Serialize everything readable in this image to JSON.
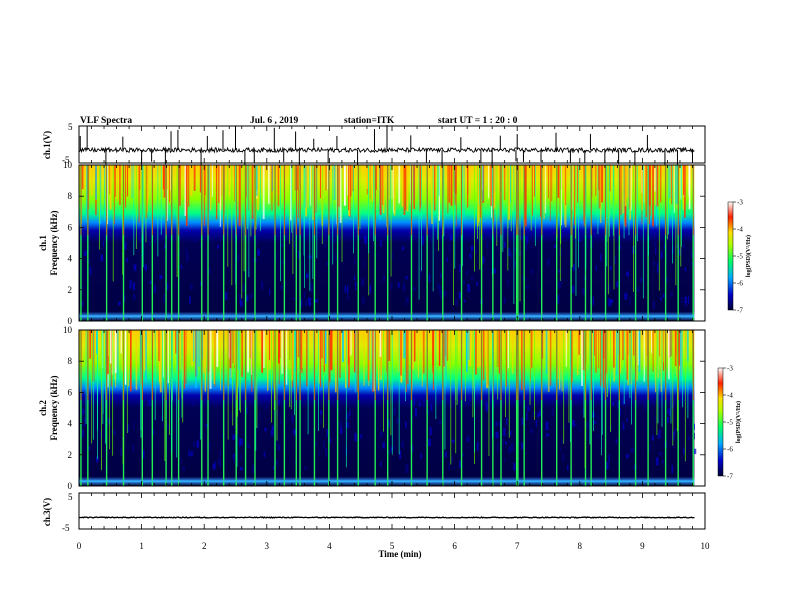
{
  "header": {
    "title": "VLF Spectra",
    "date": "Jul. 6 , 2019",
    "station": "station=ITK",
    "start_ut": "start UT = 1 : 20 : 0"
  },
  "xaxis": {
    "label": "Time (min)",
    "range": [
      0,
      10
    ],
    "ticks": [
      "0",
      "1",
      "2",
      "3",
      "4",
      "5",
      "6",
      "7",
      "8",
      "9",
      "10"
    ]
  },
  "panels": {
    "ch1": {
      "label": "ch.1(V)",
      "range": [
        -5,
        5
      ],
      "ticks": [
        "5",
        "-5"
      ]
    },
    "ch3": {
      "label": "ch.3(V)",
      "range": [
        -5,
        5
      ],
      "ticks": [
        "5",
        "-5"
      ]
    },
    "spec1": {
      "label1": "ch.1",
      "label2": "Frequency (kHz)",
      "range": [
        0,
        10
      ],
      "ticks": [
        "10",
        "8",
        "6",
        "4",
        "2",
        "0"
      ]
    },
    "spec2": {
      "label1": "ch.2",
      "label2": "Frequency (kHz)",
      "range": [
        0,
        10
      ],
      "ticks": [
        "10",
        "8",
        "6",
        "4",
        "2",
        "0"
      ]
    }
  },
  "colorbar": {
    "label": "log(PSD)(V²/Hz)",
    "range": [
      -7,
      -3
    ],
    "ticks": [
      "-3",
      "-4",
      "-5",
      "-6",
      "-7"
    ],
    "colors": [
      "#000033",
      "#0000c8",
      "#00aaff",
      "#00ff66",
      "#aaff00",
      "#ffdd00",
      "#ff2200",
      "#ffffff"
    ]
  },
  "chart_data": {
    "type": "heatmap",
    "title": "VLF Spectra",
    "xlabel": "Time (min)",
    "xlim": [
      0,
      9.83
    ],
    "spectrogram_ylabel": "Frequency (kHz)",
    "spectrogram_ylim": [
      0,
      10
    ],
    "channels": [
      "ch.1",
      "ch.2"
    ],
    "waveform_ylim": [
      -5,
      5
    ],
    "waveforms": [
      {
        "name": "ch.1(V)",
        "baseline": -1.5
      },
      {
        "name": "ch.3(V)",
        "baseline": -1.8
      }
    ],
    "colorbar_range": [
      -7,
      -3
    ],
    "background_boundary_khz": 6,
    "sferic_times_min": [
      0.02,
      0.13,
      0.43,
      0.7,
      1.0,
      1.16,
      1.38,
      1.47,
      1.58,
      1.95,
      2.05,
      2.3,
      2.5,
      2.65,
      2.8,
      3.12,
      3.27,
      3.46,
      3.52,
      3.75,
      3.98,
      4.12,
      4.45,
      4.72,
      4.92,
      5.3,
      5.55,
      5.8,
      6.1,
      6.42,
      6.6,
      6.73,
      6.98,
      7.0,
      7.1,
      7.38,
      7.62,
      7.85,
      8.08,
      8.17,
      8.4,
      8.62,
      8.88,
      9.08,
      9.36,
      9.56,
      9.8
    ]
  }
}
